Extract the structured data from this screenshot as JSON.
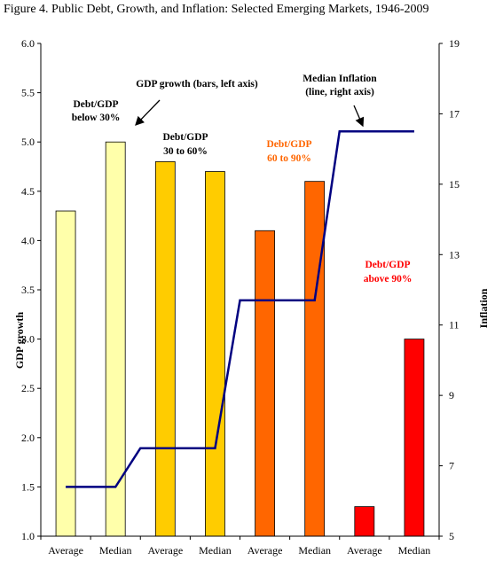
{
  "title": "Figure 4.  Public Debt, Growth, and Inflation:  Selected Emerging Markets, 1946-2009",
  "chart_data": {
    "type": "bar",
    "categories": [
      "Average",
      "Median",
      "Average",
      "Median",
      "Average",
      "Median",
      "Average",
      "Median"
    ],
    "series": [
      {
        "type": "bar",
        "axis": "left",
        "values": [
          4.3,
          5.0,
          4.8,
          4.7,
          4.1,
          4.6,
          1.3,
          3.0
        ],
        "colors": [
          "#FFFFAA",
          "#FFFFAA",
          "#FFCC00",
          "#FFCC00",
          "#FF6600",
          "#FF6600",
          "#FF0000",
          "#FF0000"
        ]
      },
      {
        "type": "line",
        "axis": "right",
        "color": "#000080",
        "values": [
          6.4,
          6.4,
          7.5,
          7.5,
          11.7,
          11.7,
          16.5,
          16.5
        ]
      }
    ],
    "ylabel": "GDP growth",
    "y2label": "Inflation",
    "ylim": [
      1.0,
      6.0
    ],
    "ytick_labels": [
      "1.0",
      "1.5",
      "2.0",
      "2.5",
      "3.0",
      "3.5",
      "4.0",
      "4.5",
      "5.0",
      "5.5",
      "6.0"
    ],
    "y2lim": [
      5,
      19
    ],
    "y2tick_labels": [
      "5",
      "7",
      "9",
      "11",
      "13",
      "15",
      "17",
      "19"
    ],
    "grid": false,
    "annotations": [
      {
        "name": "annot-gdp-growth",
        "lines": [
          "GDP growth (bars, left axis)"
        ],
        "color": "#000000"
      },
      {
        "name": "annot-median-inflation",
        "lines": [
          "Median Inflation",
          "(line, right axis)"
        ],
        "color": "#000000"
      },
      {
        "name": "annot-group-below-30",
        "lines": [
          "Debt/GDP",
          "below 30%"
        ],
        "color": "#000000"
      },
      {
        "name": "annot-group-30-60",
        "lines": [
          "Debt/GDP",
          "30 to 60%"
        ],
        "color": "#000000"
      },
      {
        "name": "annot-group-60-90",
        "lines": [
          "Debt/GDP",
          "60 to 90%"
        ],
        "color": "#FF6600"
      },
      {
        "name": "annot-group-above-90",
        "lines": [
          "Debt/GDP",
          "above 90%"
        ],
        "color": "#FF0000"
      }
    ]
  }
}
